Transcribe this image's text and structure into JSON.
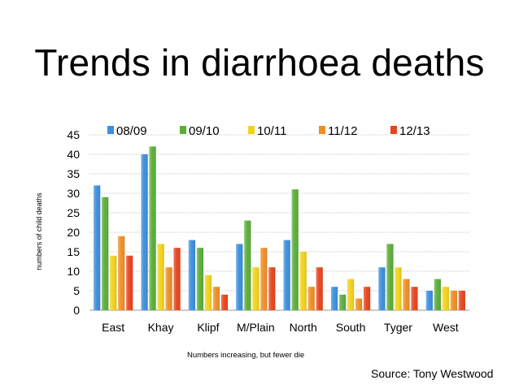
{
  "slide": {
    "title": "Trends in diarrhoea deaths",
    "note": "Numbers increasing, but fewer die",
    "source": "Source: Tony Westwood"
  },
  "chart_data": {
    "type": "bar",
    "ylabel": "numbers of child deaths",
    "xlabel": "",
    "ylim": [
      0,
      45
    ],
    "yticks": [
      0,
      5,
      10,
      15,
      20,
      25,
      30,
      35,
      40,
      45
    ],
    "grid": true,
    "legend_position": "top",
    "categories": [
      "East",
      "Khay",
      "Klipf",
      "M/Plain",
      "North",
      "South",
      "Tyger",
      "West"
    ],
    "series": [
      {
        "name": "08/09",
        "color": "#3d8fdc",
        "values": [
          32,
          40,
          18,
          17,
          18,
          6,
          11,
          5
        ]
      },
      {
        "name": "09/10",
        "color": "#5cae3a",
        "values": [
          29,
          42,
          16,
          23,
          31,
          4,
          17,
          8
        ]
      },
      {
        "name": "10/11",
        "color": "#f2d21b",
        "values": [
          14,
          17,
          9,
          11,
          15,
          8,
          11,
          6
        ]
      },
      {
        "name": "11/12",
        "color": "#ee8f26",
        "values": [
          19,
          11,
          6,
          16,
          6,
          3,
          8,
          5
        ]
      },
      {
        "name": "12/13",
        "color": "#e8451e",
        "values": [
          14,
          16,
          4,
          11,
          11,
          6,
          6,
          5
        ]
      }
    ]
  }
}
